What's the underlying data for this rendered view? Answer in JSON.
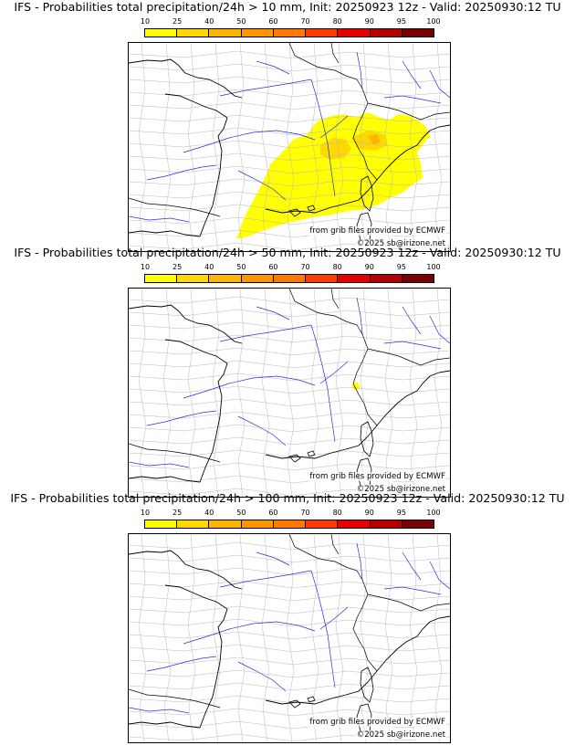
{
  "legend": {
    "ticks": [
      "10",
      "25",
      "40",
      "50",
      "60",
      "70",
      "80",
      "90",
      "95",
      "100"
    ],
    "colors": [
      "#ffff00",
      "#ffd800",
      "#ffb400",
      "#ff9600",
      "#ff7800",
      "#ff3c00",
      "#e60000",
      "#b40000",
      "#7d0000"
    ]
  },
  "panels": [
    {
      "title": "IFS - Probabilities total precipitation/24h > 10 mm, Init: 20250923 12z - Valid: 20250930:12 TU",
      "credit": "from grib files provided by ECMWF",
      "copyright": "©2025 sb@irizone.net",
      "precip_area": "large"
    },
    {
      "title": "IFS - Probabilities total precipitation/24h > 50 mm, Init: 20250923 12z - Valid: 20250930:12 TU",
      "credit": "from grib files provided by ECMWF",
      "copyright": "©2025 sb@irizone.net",
      "precip_area": "small"
    },
    {
      "title": "IFS - Probabilities total precipitation/24h > 100 mm, Init: 20250923 12z - Valid: 20250930:12 TU",
      "credit": "from grib files provided by ECMWF",
      "copyright": "©2025 sb@irizone.net",
      "precip_area": "none"
    }
  ]
}
